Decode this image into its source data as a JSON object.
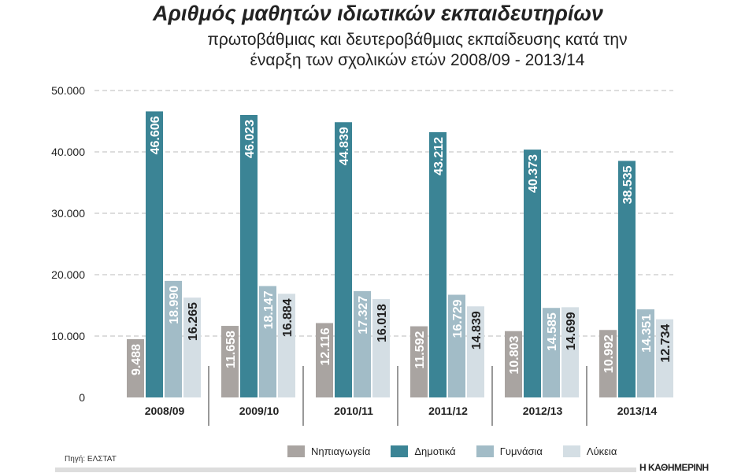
{
  "chart_data": {
    "type": "bar",
    "title": "Αριθμός μαθητών ιδιωτικών εκπαιδευτηρίων",
    "subtitle": "πρωτοβάθμιας και δευτεροβάθμιας εκπαίδευσης κατά την έναρξη των σχολικών ετών 2008/09 - 2013/14",
    "categories": [
      "2008/09",
      "2009/10",
      "2010/11",
      "2011/12",
      "2012/13",
      "2013/14"
    ],
    "series": [
      {
        "name": "Νηπιαγωγεία",
        "color": "#a9a4a1",
        "label_color": "#ffffff",
        "values": [
          9488,
          11658,
          12116,
          11592,
          10803,
          10992
        ]
      },
      {
        "name": "Δημοτικά",
        "color": "#3b8495",
        "label_color": "#ffffff",
        "values": [
          46606,
          46023,
          44839,
          43212,
          40373,
          38535
        ]
      },
      {
        "name": "Γυμνάσια",
        "color": "#a2bcc7",
        "label_color": "#ffffff",
        "values": [
          18990,
          18147,
          17327,
          16729,
          14585,
          14351
        ]
      },
      {
        "name": "Λύκεια",
        "color": "#d4dee4",
        "label_color": "#222222",
        "values": [
          16265,
          16884,
          16018,
          14839,
          14699,
          12734
        ]
      }
    ],
    "ylim": [
      0,
      50000
    ],
    "yticks": [
      0,
      10000,
      20000,
      30000,
      40000,
      50000
    ],
    "ytick_labels": [
      "0",
      "10.000",
      "20.000",
      "30.000",
      "40.000",
      "50.000"
    ],
    "grid": true,
    "legend": "bottom"
  },
  "source": "Πηγή: ΕΛΣΤΑΤ",
  "brand": "Η ΚΑΘΗΜΕΡΙΝΗ"
}
